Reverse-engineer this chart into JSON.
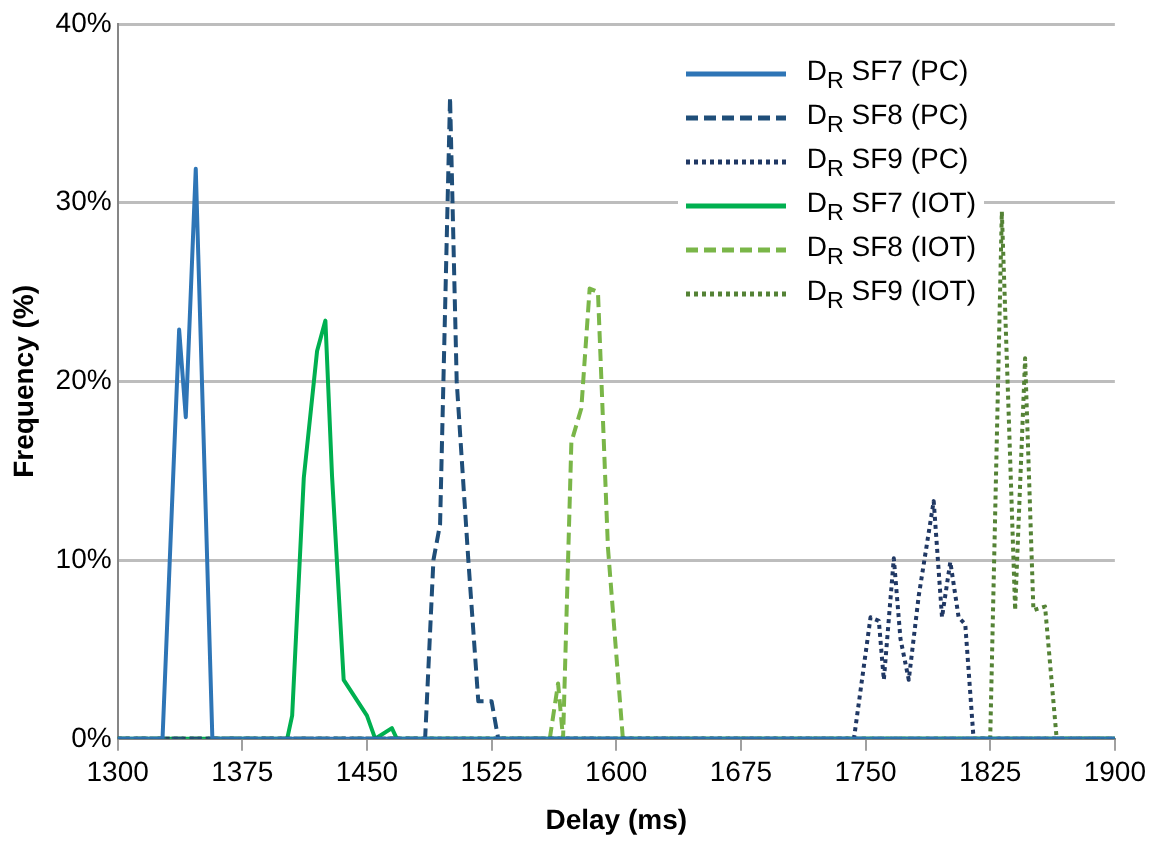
{
  "chart_data": {
    "type": "line",
    "xlabel": "Delay (ms)",
    "ylabel": "Frequency (%)",
    "xlim": [
      1300,
      1900
    ],
    "xticks": [
      1300,
      1375,
      1450,
      1525,
      1600,
      1675,
      1750,
      1825,
      1900
    ],
    "ylim": [
      0,
      40
    ],
    "yticks": [
      {
        "value": 0,
        "label": "0%"
      },
      {
        "value": 10,
        "label": "10%"
      },
      {
        "value": 20,
        "label": "20%"
      },
      {
        "value": 30,
        "label": "30%"
      },
      {
        "value": 40,
        "label": "40%"
      }
    ],
    "grid": "y",
    "legend": "top right",
    "marker": "none",
    "series": [
      {
        "name": "D$_{R}$ SF7 (PC)",
        "color": "#2e75b6",
        "line_style": "solid",
        "x": [
          1300,
          1327,
          1337,
          1341,
          1347,
          1357,
          1900
        ],
        "values": [
          0,
          0,
          22.9,
          18,
          31.9,
          0,
          0
        ]
      },
      {
        "name": "D$_{R}$ SF8 (PC)",
        "color": "#1f4e79",
        "line_style": "dashed",
        "x": [
          1300,
          1485,
          1490,
          1494,
          1500,
          1504,
          1511,
          1517,
          1525,
          1529,
          1900
        ],
        "values": [
          0,
          0,
          10,
          12,
          35.9,
          20,
          10,
          2.1,
          2.1,
          0,
          0
        ]
      },
      {
        "name": "D$_{R}$ SF9 (PC)",
        "color": "#203864",
        "line_style": "dotted",
        "x": [
          1300,
          1743,
          1753,
          1758,
          1761,
          1767,
          1771,
          1776,
          1782,
          1791,
          1796,
          1801,
          1806,
          1810,
          1815,
          1900
        ],
        "values": [
          0,
          0,
          6.8,
          6.6,
          3.3,
          10.1,
          5.6,
          3.3,
          8,
          13.3,
          6.8,
          9.9,
          6.8,
          6.4,
          0,
          0
        ]
      },
      {
        "name": "D$_{R}$ SF7 (IOT)",
        "color": "#00b050",
        "line_style": "solid",
        "x": [
          1300,
          1402,
          1405,
          1412,
          1420,
          1425,
          1429,
          1436,
          1450,
          1455,
          1465,
          1468,
          1900
        ],
        "values": [
          0,
          0,
          1.3,
          14.6,
          21.7,
          23.4,
          14.7,
          3.3,
          1.3,
          0,
          0.6,
          0,
          0
        ]
      },
      {
        "name": "D$_{R}$ SF8 (IOT)",
        "color": "#7ab648",
        "line_style": "dashed",
        "x": [
          1300,
          1560,
          1565,
          1568,
          1573,
          1579,
          1584,
          1589,
          1595,
          1604,
          1900
        ],
        "values": [
          0,
          0,
          3.1,
          0,
          16.6,
          18.5,
          25.2,
          25,
          10.7,
          0,
          0
        ]
      },
      {
        "name": "D$_{R}$ SF9 (IOT)",
        "color": "#548235",
        "line_style": "dotted",
        "x": [
          1300,
          1825,
          1832,
          1836,
          1840,
          1846,
          1851,
          1858,
          1865,
          1900
        ],
        "values": [
          0,
          0,
          29.5,
          18.5,
          7.2,
          21.3,
          7.2,
          7.4,
          0,
          0
        ]
      }
    ]
  }
}
